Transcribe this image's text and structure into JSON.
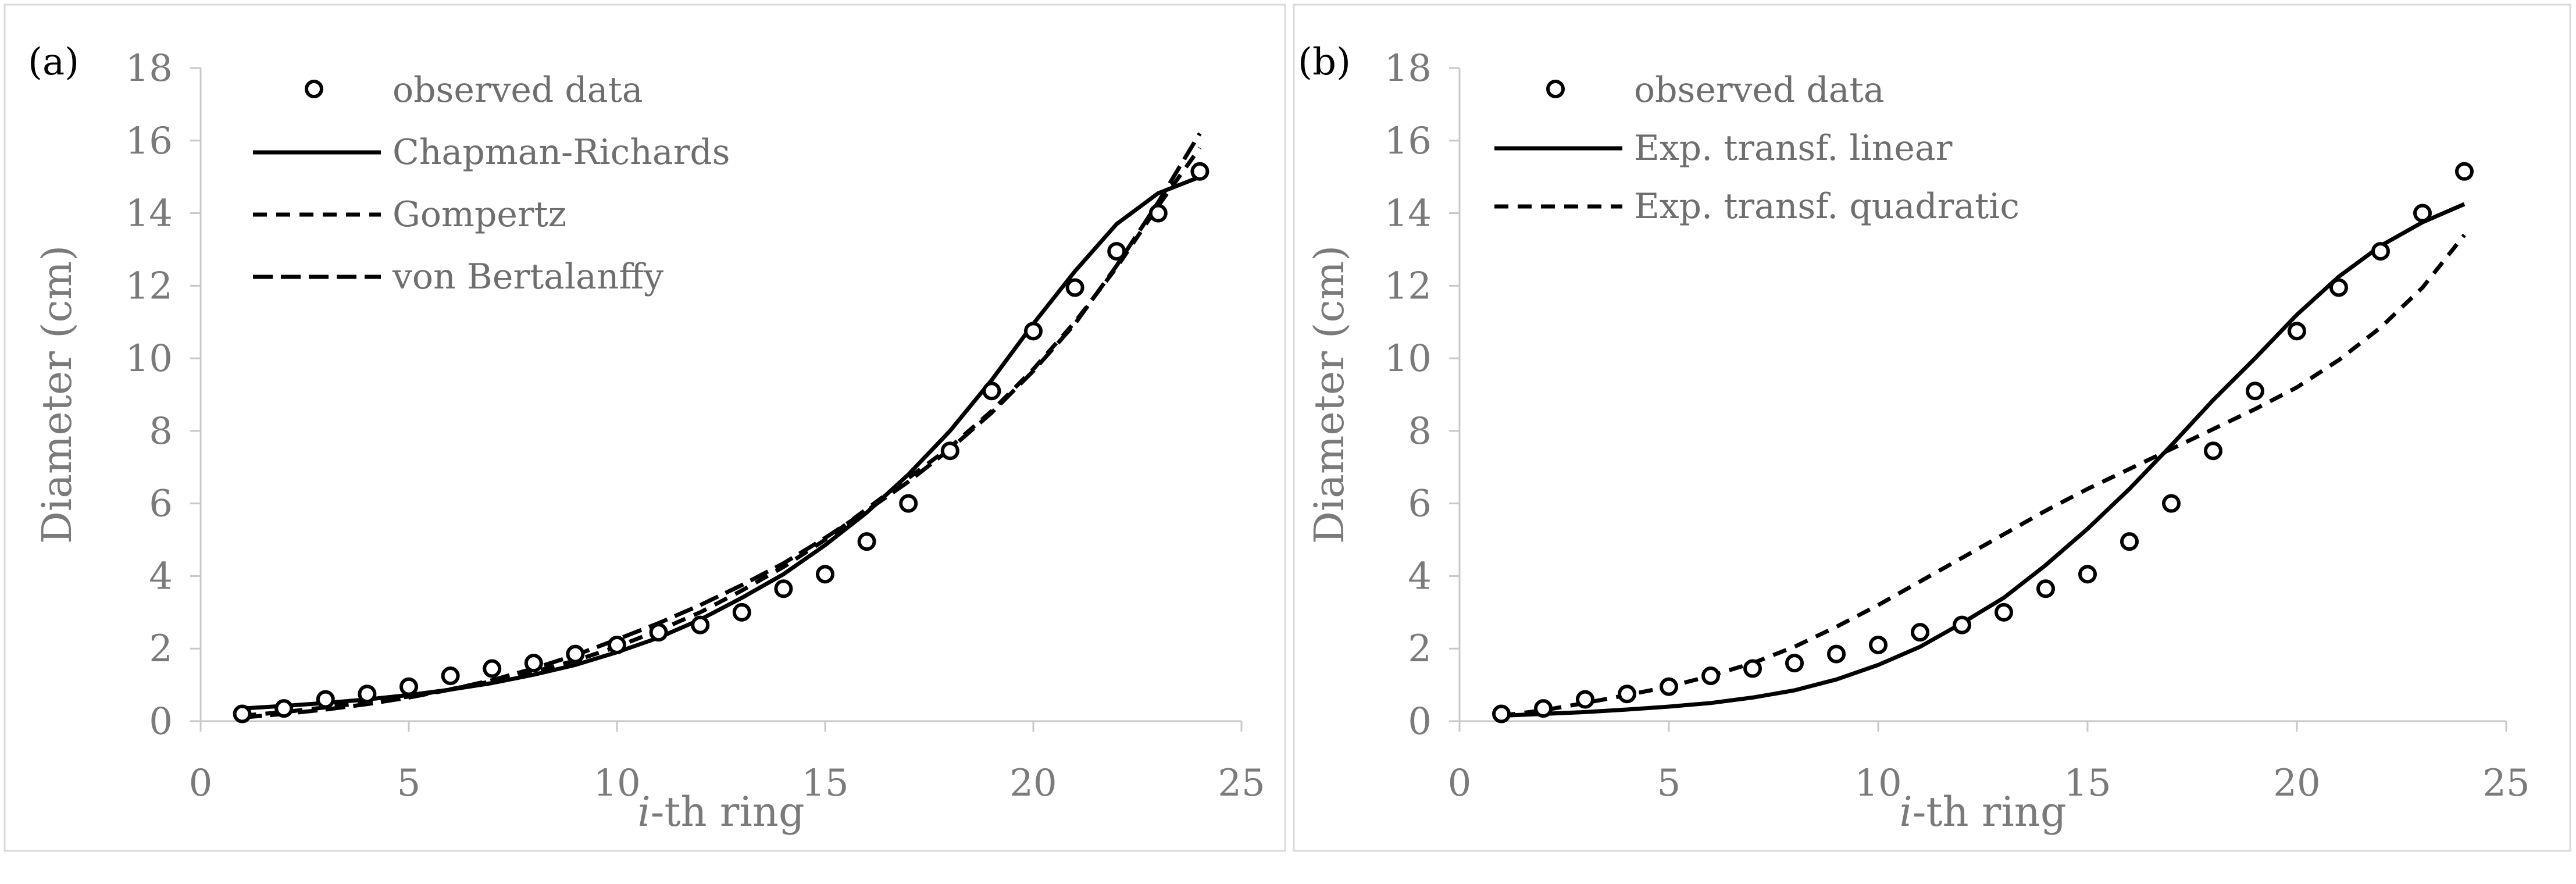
{
  "chart_data": [
    {
      "panel": "(a)",
      "type": "scatter",
      "xlabel_italic": "i",
      "xlabel_rest": "-th ring",
      "ylabel": "Diameter (cm)",
      "xlim": [
        0,
        25
      ],
      "ylim": [
        0,
        18
      ],
      "xticks": [
        "0",
        "5",
        "10",
        "15",
        "20",
        "25"
      ],
      "yticks": [
        "0",
        "2",
        "4",
        "6",
        "8",
        "10",
        "12",
        "14",
        "16",
        "18"
      ],
      "legend": {
        "placement": "top-left",
        "entries": [
          {
            "label": "observed data",
            "style": "marker"
          },
          {
            "label": "Chapman-Richards",
            "style": "solid"
          },
          {
            "label": "Gompertz",
            "style": "dashed"
          },
          {
            "label": "von Bertalanffy",
            "style": "longdash"
          }
        ]
      },
      "observed": {
        "x": [
          1,
          2,
          3,
          4,
          5,
          6,
          7,
          8,
          9,
          10,
          11,
          12,
          13,
          14,
          15,
          16,
          17,
          18,
          19,
          20,
          21,
          22,
          23,
          24
        ],
        "y": [
          0.2,
          0.35,
          0.6,
          0.75,
          0.95,
          1.25,
          1.45,
          1.6,
          1.85,
          2.1,
          2.45,
          2.65,
          3.0,
          3.65,
          4.05,
          4.95,
          6.0,
          7.45,
          9.1,
          10.75,
          11.95,
          12.95,
          14.0,
          15.15
        ]
      },
      "series": [
        {
          "name": "Chapman-Richards",
          "style": "solid",
          "x": [
            1,
            2,
            3,
            4,
            5,
            6,
            7,
            8,
            9,
            10,
            11,
            12,
            13,
            14,
            15,
            16,
            17,
            18,
            19,
            20,
            21,
            22,
            23,
            24
          ],
          "y": [
            0.35,
            0.42,
            0.5,
            0.6,
            0.72,
            0.87,
            1.05,
            1.28,
            1.55,
            1.9,
            2.3,
            2.8,
            3.4,
            4.05,
            4.85,
            5.75,
            6.8,
            8.0,
            9.4,
            10.95,
            12.4,
            13.7,
            14.55,
            15.0
          ]
        },
        {
          "name": "Gompertz",
          "style": "dashed",
          "x": [
            1,
            2,
            3,
            4,
            5,
            6,
            7,
            8,
            9,
            10,
            11,
            12,
            13,
            14,
            15,
            16,
            17,
            18,
            19,
            20,
            21,
            22,
            23,
            24
          ],
          "y": [
            0.15,
            0.25,
            0.38,
            0.52,
            0.68,
            0.88,
            1.1,
            1.36,
            1.67,
            2.05,
            2.5,
            3.0,
            3.6,
            4.25,
            5.0,
            5.85,
            6.7,
            7.55,
            8.55,
            9.7,
            11.0,
            12.5,
            14.2,
            15.8
          ]
        },
        {
          "name": "von Bertalanffy",
          "style": "longdash",
          "x": [
            1,
            2,
            3,
            4,
            5,
            6,
            7,
            8,
            9,
            10,
            11,
            12,
            13,
            14,
            15,
            16,
            17,
            18,
            19,
            20,
            21,
            22,
            23,
            24
          ],
          "y": [
            0.1,
            0.2,
            0.32,
            0.47,
            0.65,
            0.87,
            1.13,
            1.45,
            1.82,
            2.25,
            2.7,
            3.2,
            3.75,
            4.35,
            5.05,
            5.8,
            6.6,
            7.5,
            8.5,
            9.65,
            10.95,
            12.55,
            14.3,
            16.2
          ]
        }
      ]
    },
    {
      "panel": "(b)",
      "type": "scatter",
      "xlabel_italic": "i",
      "xlabel_rest": "-th ring",
      "ylabel": "Diameter (cm)",
      "xlim": [
        0,
        25
      ],
      "ylim": [
        0,
        18
      ],
      "xticks": [
        "0",
        "5",
        "10",
        "15",
        "20",
        "25"
      ],
      "yticks": [
        "0",
        "2",
        "4",
        "6",
        "8",
        "10",
        "12",
        "14",
        "16",
        "18"
      ],
      "legend": {
        "placement": "top-left",
        "entries": [
          {
            "label": "observed data",
            "style": "marker"
          },
          {
            "label": "Exp. transf. linear",
            "style": "solid"
          },
          {
            "label": "Exp. transf. quadratic",
            "style": "dashed"
          }
        ]
      },
      "observed": {
        "x": [
          1,
          2,
          3,
          4,
          5,
          6,
          7,
          8,
          9,
          10,
          11,
          12,
          13,
          14,
          15,
          16,
          17,
          18,
          19,
          20,
          21,
          22,
          23,
          24
        ],
        "y": [
          0.2,
          0.35,
          0.6,
          0.75,
          0.95,
          1.25,
          1.45,
          1.6,
          1.85,
          2.1,
          2.45,
          2.65,
          3.0,
          3.65,
          4.05,
          4.95,
          6.0,
          7.45,
          9.1,
          10.75,
          11.95,
          12.95,
          14.0,
          15.15
        ]
      },
      "series": [
        {
          "name": "Exp. transf. linear",
          "style": "solid",
          "x": [
            1,
            2,
            3,
            4,
            5,
            6,
            7,
            8,
            9,
            10,
            11,
            12,
            13,
            14,
            15,
            16,
            17,
            18,
            19,
            20,
            21,
            22,
            23,
            24
          ],
          "y": [
            0.15,
            0.2,
            0.25,
            0.32,
            0.4,
            0.5,
            0.65,
            0.85,
            1.15,
            1.55,
            2.05,
            2.7,
            3.4,
            4.3,
            5.3,
            6.4,
            7.6,
            8.85,
            10.0,
            11.2,
            12.25,
            13.1,
            13.75,
            14.25
          ]
        },
        {
          "name": "Exp. transf. quadratic",
          "style": "dashed",
          "x": [
            1,
            2,
            3,
            4,
            5,
            6,
            7,
            8,
            9,
            10,
            11,
            12,
            13,
            14,
            15,
            16,
            17,
            18,
            19,
            20,
            21,
            22,
            23,
            24
          ],
          "y": [
            0.15,
            0.3,
            0.5,
            0.72,
            0.95,
            1.25,
            1.6,
            2.05,
            2.6,
            3.2,
            3.85,
            4.5,
            5.15,
            5.8,
            6.4,
            6.95,
            7.5,
            8.05,
            8.6,
            9.2,
            9.95,
            10.85,
            11.95,
            13.4
          ]
        }
      ]
    }
  ]
}
